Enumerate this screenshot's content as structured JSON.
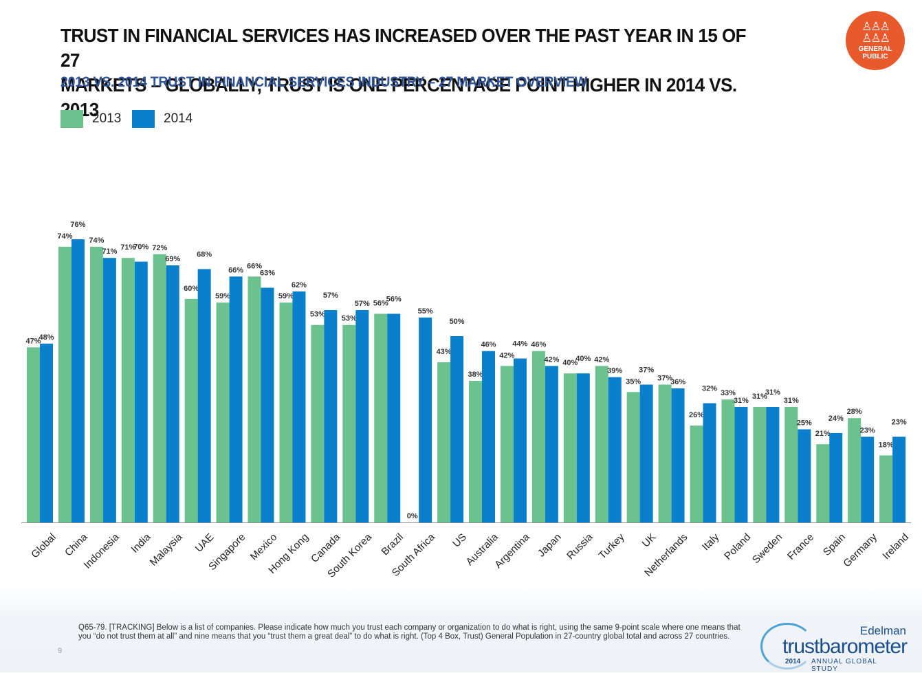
{
  "title_line1": "TRUST IN FINANCIAL SERVICES HAS INCREASED OVER THE PAST YEAR IN 15 OF 27",
  "title_line2": "MARKETS – GLOBALLY, TRUST IS ONE PERCENTAGE POINT HIGHER IN 2014 VS. 2013",
  "subtitle": "2013 VS. 2014 TRUST IN FINANCIAL SERVICES INDUSTRY – 27 MARKET OVERVIEW",
  "badge": {
    "icon": "people-group-icon",
    "line1": "GENERAL",
    "line2": "PUBLIC",
    "color": "#e8592c"
  },
  "colors": {
    "series_2013": "#6cc28f",
    "series_2014": "#0a7fcc",
    "axis": "#8c8c8c"
  },
  "chart_data": {
    "type": "bar",
    "title": "2013 VS. 2014 TRUST IN FINANCIAL SERVICES INDUSTRY – 27 MARKET OVERVIEW",
    "xlabel": "",
    "ylabel": "",
    "ylim": [
      0,
      80
    ],
    "grid": false,
    "legend": "top-left",
    "value_format": "percent",
    "categories": [
      "Global",
      "China",
      "Indonesia",
      "India",
      "Malaysia",
      "UAE",
      "Singapore",
      "Mexico",
      "Hong Kong",
      "Canada",
      "South Korea",
      "Brazil",
      "South Africa",
      "US",
      "Australia",
      "Argentina",
      "Japan",
      "Russia",
      "Turkey",
      "UK",
      "Netherlands",
      "Italy",
      "Poland",
      "Sweden",
      "France",
      "Spain",
      "Germany",
      "Ireland"
    ],
    "series": [
      {
        "name": "2013",
        "color": "#6cc28f",
        "values": [
          47,
          74,
          74,
          71,
          72,
          60,
          59,
          66,
          59,
          53,
          53,
          56,
          0,
          43,
          38,
          42,
          46,
          40,
          42,
          35,
          37,
          26,
          33,
          31,
          31,
          21,
          28,
          18
        ]
      },
      {
        "name": "2014",
        "color": "#0a7fcc",
        "values": [
          48,
          76,
          71,
          70,
          69,
          68,
          66,
          63,
          62,
          57,
          57,
          56,
          55,
          50,
          46,
          44,
          42,
          40,
          39,
          37,
          36,
          32,
          31,
          31,
          25,
          24,
          23,
          23
        ]
      }
    ]
  },
  "footnote": "Q65-79. [TRACKING] Below is a list of companies. Please indicate how much you trust each company or organization to do what is right, using the same 9-point scale where one means that you “do not trust them at all” and nine means that you “trust them a great deal” to do what is right. (Top 4 Box, Trust) General Population in 27-country global total and across 27 countries.",
  "page_number": "9",
  "brand": {
    "company": "Edelman",
    "product": "trustbarometer",
    "year": "2014",
    "tagline": "ANNUAL GLOBAL STUDY"
  }
}
